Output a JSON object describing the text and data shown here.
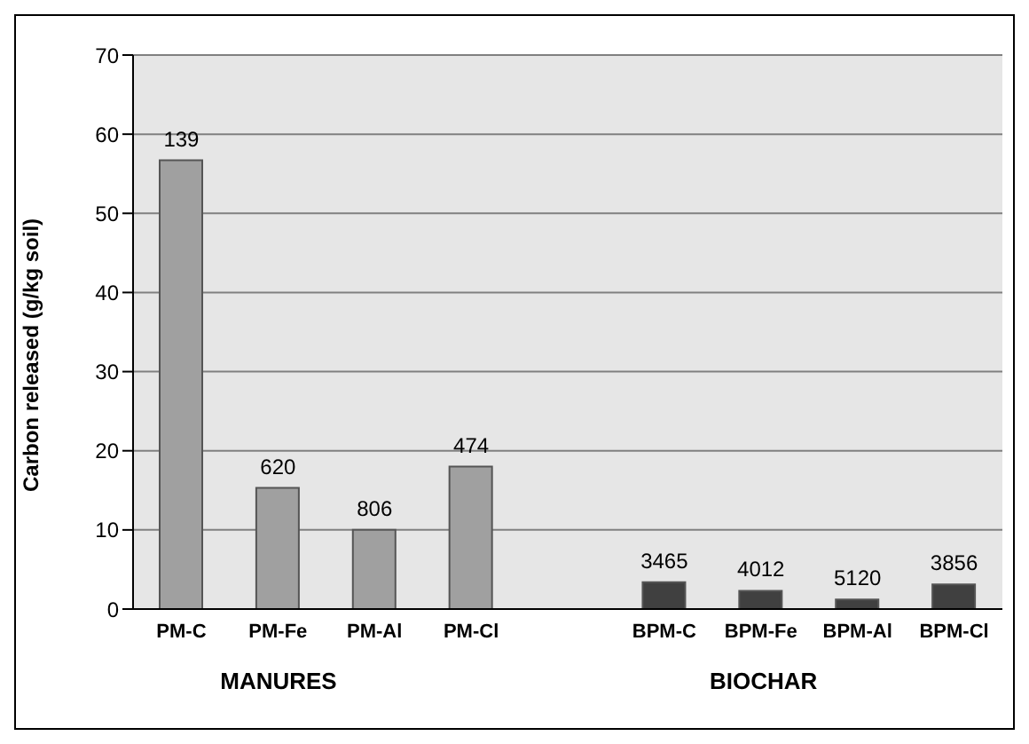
{
  "chart_data": {
    "type": "bar",
    "ylabel": "Carbon released (g/kg soil)",
    "categories": [
      "PM-C",
      "PM-Fe",
      "PM-Al",
      "PM-Cl",
      null,
      "BPM-C",
      "BPM-Fe",
      "BPM-Al",
      "BPM-Cl"
    ],
    "values": [
      56.7,
      15.3,
      10,
      18,
      null,
      3.4,
      2.3,
      1.2,
      3.1
    ],
    "colors": [
      "#a0a0a0",
      "#a0a0a0",
      "#a0a0a0",
      "#a0a0a0",
      "#a0a0a0",
      "#404040",
      "#404040",
      "#404040",
      "#404040"
    ],
    "annotations": [
      "MANURES",
      "BIOCHAR",
      {
        "text": "139",
        "x": "PM-C",
        "y": 56.7
      },
      {
        "text": "620",
        "x": "PM-Fe",
        "y": 15.3
      },
      {
        "text": "806",
        "x": "PM-Al",
        "y": 10
      },
      {
        "text": "474",
        "x": "PM-Cl",
        "y": 18
      },
      {
        "text": "3465",
        "x": "BPM-C",
        "y": 3.4
      },
      {
        "text": "4012",
        "x": "BPM-Fe",
        "y": 2.3
      },
      {
        "text": "5120",
        "x": "BPM-Al",
        "y": 1.2
      },
      {
        "text": "3856",
        "x": "BPM-Cl",
        "y": 3.1
      }
    ],
    "ylim": [
      0,
      70
    ],
    "yticks": [
      0,
      10,
      20,
      30,
      40,
      50,
      60,
      70
    ],
    "grid": "y"
  }
}
